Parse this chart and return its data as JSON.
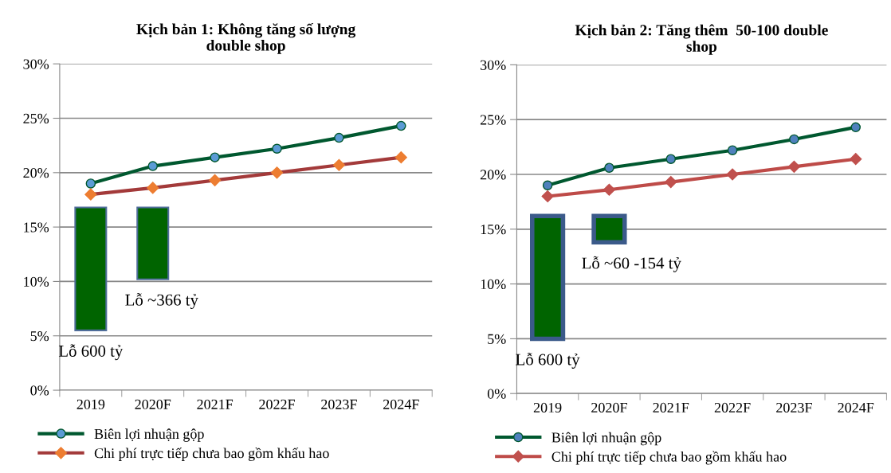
{
  "chart_data": [
    {
      "type": "line",
      "title": "Kịch bản 1: Không tăng số lượng\ndouble shop",
      "categories": [
        "2019",
        "2020F",
        "2021F",
        "2022F",
        "2023F",
        "2024F"
      ],
      "series": [
        {
          "type": "bar",
          "color": "#006400",
          "values": [
            11.3,
            6.6,
            null,
            null,
            null,
            null
          ],
          "base": [
            5.5,
            10.2,
            null,
            null,
            null,
            null
          ]
        },
        {
          "name": "Biên lợi nhuận gộp",
          "color": "#00582f",
          "marker": "circle",
          "values": [
            19.0,
            20.6,
            21.4,
            22.2,
            23.2,
            24.3
          ]
        },
        {
          "name": "Chi phí trực tiếp chưa bao gồm khấu hao",
          "color": "#a33a3a",
          "marker": "diamond",
          "values": [
            18.0,
            18.6,
            19.3,
            20.0,
            20.7,
            21.4
          ]
        }
      ],
      "ylim": [
        0,
        30
      ],
      "yticks": [
        {
          "value": 0,
          "label": "0%"
        },
        {
          "value": 5,
          "label": "5%"
        },
        {
          "value": 10,
          "label": "10%"
        },
        {
          "value": 15,
          "label": "15%"
        },
        {
          "value": 20,
          "label": "20%"
        },
        {
          "value": 25,
          "label": "25%"
        },
        {
          "value": 30,
          "label": "30%"
        }
      ],
      "grid": "y",
      "legend": "bottom",
      "annotations": [
        "Lỗ 600 tỷ",
        "Lỗ ~366 tỷ"
      ]
    },
    {
      "type": "line",
      "title": "Kịch bản 2: Tăng thêm  50-100 double\nshop",
      "categories": [
        "2019",
        "2020F",
        "2021F",
        "2022F",
        "2023F",
        "2024F"
      ],
      "series": [
        {
          "type": "bar",
          "color": "#006400",
          "values": [
            11.2,
            2.4,
            null,
            null,
            null,
            null
          ],
          "base": [
            5.0,
            13.8,
            null,
            null,
            null,
            null
          ]
        },
        {
          "name": "Biên lợi nhuận gộp",
          "color": "#00582f",
          "marker": "circle",
          "values": [
            19.0,
            20.6,
            21.4,
            22.2,
            23.2,
            24.3
          ]
        },
        {
          "name": "Chi phí trực tiếp chưa bao gồm khấu hao",
          "color": "#be4b48",
          "marker": "diamond",
          "values": [
            18.0,
            18.6,
            19.3,
            20.0,
            20.7,
            21.4
          ]
        }
      ],
      "ylim": [
        0,
        30
      ],
      "yticks": [
        {
          "value": 0,
          "label": "0%"
        },
        {
          "value": 5,
          "label": "5%"
        },
        {
          "value": 10,
          "label": "10%"
        },
        {
          "value": 15,
          "label": "15%"
        },
        {
          "value": 20,
          "label": "20%"
        },
        {
          "value": 25,
          "label": "25%"
        },
        {
          "value": 30,
          "label": "30%"
        }
      ],
      "grid": "y",
      "legend": "bottom",
      "annotations": [
        "Lỗ 600 tỷ",
        "Lỗ ~60 -154 tỷ"
      ]
    }
  ]
}
